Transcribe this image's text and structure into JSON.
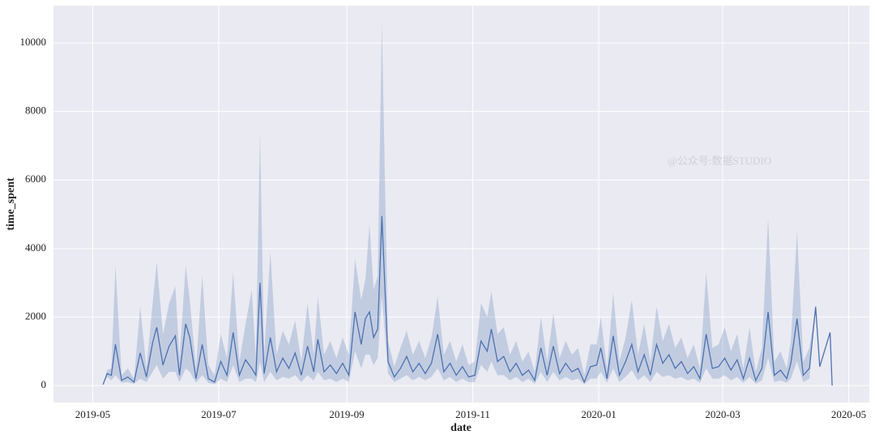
{
  "chart_data": {
    "type": "line",
    "xlabel": "date",
    "ylabel": "time_spent",
    "annotation": "@公众号:数据STUDIO",
    "color": "#4c72b0",
    "band_color": "#4c72b0",
    "background": "#eaeaf2",
    "grid": true,
    "xlim": [
      "2019-04-12",
      "2020-05-11"
    ],
    "xticks": [
      {
        "value": "2019-05-01",
        "label": "2019-05"
      },
      {
        "value": "2019-07-01",
        "label": "2019-07"
      },
      {
        "value": "2019-09-01",
        "label": "2019-09"
      },
      {
        "value": "2019-11-01",
        "label": "2019-11"
      },
      {
        "value": "2020-01-01",
        "label": "2020-01"
      },
      {
        "value": "2020-03-01",
        "label": "2020-03"
      },
      {
        "value": "2020-05-01",
        "label": "2020-05"
      }
    ],
    "ylim": [
      -497,
      11090
    ],
    "yticks": [
      0,
      2000,
      4000,
      6000,
      8000,
      10000
    ],
    "x": [
      "2019-05-06",
      "2019-05-08",
      "2019-05-10",
      "2019-05-12",
      "2019-05-15",
      "2019-05-18",
      "2019-05-21",
      "2019-05-24",
      "2019-05-27",
      "2019-05-30",
      "2019-06-01",
      "2019-06-04",
      "2019-06-07",
      "2019-06-10",
      "2019-06-12",
      "2019-06-15",
      "2019-06-17",
      "2019-06-20",
      "2019-06-23",
      "2019-06-26",
      "2019-06-29",
      "2019-07-02",
      "2019-07-05",
      "2019-07-08",
      "2019-07-11",
      "2019-07-14",
      "2019-07-17",
      "2019-07-19",
      "2019-07-21",
      "2019-07-23",
      "2019-07-26",
      "2019-07-29",
      "2019-08-01",
      "2019-08-04",
      "2019-08-07",
      "2019-08-10",
      "2019-08-13",
      "2019-08-16",
      "2019-08-18",
      "2019-08-21",
      "2019-08-24",
      "2019-08-27",
      "2019-08-30",
      "2019-09-02",
      "2019-09-05",
      "2019-09-08",
      "2019-09-10",
      "2019-09-12",
      "2019-09-14",
      "2019-09-16",
      "2019-09-18",
      "2019-09-21",
      "2019-09-24",
      "2019-09-27",
      "2019-09-30",
      "2019-10-03",
      "2019-10-06",
      "2019-10-09",
      "2019-10-12",
      "2019-10-15",
      "2019-10-18",
      "2019-10-21",
      "2019-10-24",
      "2019-10-27",
      "2019-10-30",
      "2019-11-02",
      "2019-11-05",
      "2019-11-08",
      "2019-11-10",
      "2019-11-13",
      "2019-11-16",
      "2019-11-19",
      "2019-11-22",
      "2019-11-25",
      "2019-11-28",
      "2019-12-01",
      "2019-12-04",
      "2019-12-07",
      "2019-12-10",
      "2019-12-13",
      "2019-12-16",
      "2019-12-19",
      "2019-12-22",
      "2019-12-25",
      "2019-12-28",
      "2019-12-31",
      "2020-01-02",
      "2020-01-05",
      "2020-01-08",
      "2020-01-11",
      "2020-01-14",
      "2020-01-17",
      "2020-01-20",
      "2020-01-23",
      "2020-01-26",
      "2020-01-29",
      "2020-02-01",
      "2020-02-04",
      "2020-02-07",
      "2020-02-10",
      "2020-02-13",
      "2020-02-16",
      "2020-02-19",
      "2020-02-22",
      "2020-02-25",
      "2020-02-28",
      "2020-03-02",
      "2020-03-05",
      "2020-03-08",
      "2020-03-11",
      "2020-03-14",
      "2020-03-17",
      "2020-03-20",
      "2020-03-23",
      "2020-03-26",
      "2020-03-29",
      "2020-04-01",
      "2020-04-03",
      "2020-04-06",
      "2020-04-09",
      "2020-04-12",
      "2020-04-15",
      "2020-04-17",
      "2020-04-22",
      "2020-04-23"
    ],
    "values": [
      30,
      350,
      300,
      1200,
      150,
      250,
      100,
      950,
      250,
      1250,
      1700,
      600,
      1150,
      1450,
      300,
      1800,
      1400,
      200,
      1200,
      200,
      100,
      700,
      300,
      1550,
      300,
      750,
      500,
      300,
      3000,
      350,
      1400,
      400,
      800,
      500,
      950,
      300,
      1150,
      400,
      1350,
      400,
      600,
      350,
      650,
      300,
      2150,
      1200,
      1950,
      2150,
      1400,
      1650,
      4950,
      700,
      250,
      500,
      850,
      400,
      650,
      350,
      650,
      1500,
      400,
      650,
      300,
      550,
      250,
      300,
      1300,
      1000,
      1650,
      700,
      850,
      400,
      650,
      300,
      450,
      150,
      1100,
      300,
      1150,
      350,
      650,
      400,
      500,
      100,
      550,
      600,
      1100,
      200,
      1450,
      300,
      700,
      1200,
      400,
      900,
      300,
      1200,
      650,
      900,
      500,
      700,
      350,
      550,
      200,
      1500,
      500,
      550,
      800,
      450,
      750,
      200,
      800,
      150,
      500,
      2150,
      300,
      450,
      200,
      650,
      1950,
      300,
      500,
      2300,
      550,
      1550,
      0
    ],
    "ci_low": [
      30,
      250,
      150,
      300,
      80,
      100,
      50,
      200,
      100,
      400,
      600,
      200,
      400,
      400,
      100,
      500,
      400,
      80,
      300,
      80,
      40,
      200,
      100,
      600,
      100,
      200,
      200,
      100,
      700,
      100,
      400,
      150,
      250,
      200,
      300,
      100,
      300,
      150,
      400,
      150,
      200,
      100,
      200,
      100,
      1000,
      500,
      900,
      900,
      600,
      800,
      2600,
      350,
      100,
      200,
      300,
      150,
      250,
      150,
      250,
      500,
      150,
      250,
      100,
      200,
      100,
      100,
      600,
      400,
      700,
      300,
      300,
      150,
      250,
      100,
      200,
      50,
      400,
      100,
      400,
      150,
      250,
      150,
      200,
      40,
      200,
      200,
      400,
      80,
      500,
      100,
      250,
      450,
      150,
      300,
      100,
      400,
      250,
      300,
      200,
      250,
      150,
      200,
      80,
      500,
      200,
      200,
      300,
      150,
      250,
      80,
      250,
      50,
      150,
      800,
      100,
      150,
      80,
      200,
      700,
      100,
      200,
      2300,
      550,
      1550,
      0
    ],
    "ci_high": [
      30,
      450,
      500,
      3500,
      300,
      500,
      200,
      2300,
      500,
      2400,
      3600,
      1500,
      2400,
      2900,
      800,
      3500,
      2500,
      500,
      3200,
      600,
      300,
      1500,
      800,
      3300,
      700,
      1800,
      2800,
      800,
      7400,
      900,
      3900,
      900,
      1600,
      1200,
      1900,
      700,
      2400,
      900,
      2600,
      900,
      1300,
      800,
      1400,
      900,
      3700,
      2500,
      3100,
      4700,
      2800,
      3200,
      10600,
      1300,
      550,
      1100,
      1600,
      900,
      1300,
      800,
      1400,
      2600,
      900,
      1300,
      700,
      1200,
      600,
      700,
      2400,
      2000,
      2750,
      1500,
      1700,
      900,
      1300,
      700,
      1000,
      400,
      2000,
      700,
      2100,
      800,
      1300,
      900,
      1100,
      300,
      1200,
      1200,
      2000,
      500,
      2700,
      700,
      1400,
      2500,
      900,
      1800,
      700,
      2300,
      1300,
      1800,
      1100,
      1400,
      800,
      1200,
      500,
      3300,
      1100,
      1200,
      1700,
      1000,
      1500,
      500,
      1700,
      400,
      1100,
      4900,
      700,
      1000,
      500,
      1300,
      4500,
      700,
      1100,
      2300,
      550,
      1550,
      0
    ]
  }
}
